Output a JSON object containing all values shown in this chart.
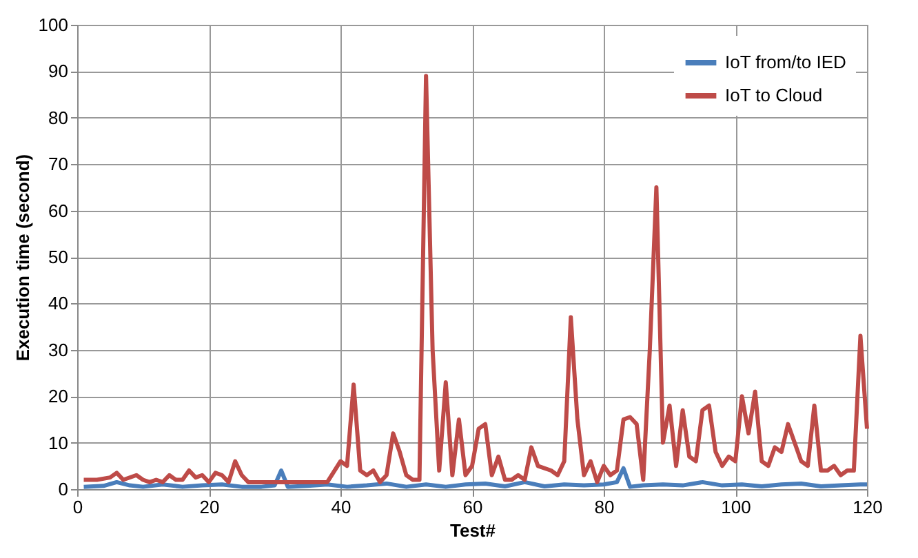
{
  "chart_data": {
    "type": "line",
    "xlabel": "Test#",
    "ylabel": "Execution time (second)",
    "xlim": [
      0,
      120
    ],
    "xticks": [
      0,
      20,
      40,
      60,
      80,
      100,
      120
    ],
    "ylim": [
      0,
      100
    ],
    "yticks": [
      0,
      10,
      20,
      30,
      40,
      50,
      60,
      70,
      80,
      90,
      100
    ],
    "grid": true,
    "legend": "top right",
    "marker": "none",
    "line_style": "solid",
    "series": [
      {
        "name": "IoT from/to IED",
        "color": "#4a7ebb",
        "x": [
          1,
          4,
          6,
          8,
          10,
          13,
          16,
          19,
          22,
          25,
          28,
          30,
          31,
          32,
          35,
          38,
          41,
          44,
          47,
          50,
          53,
          56,
          59,
          62,
          65,
          68,
          71,
          74,
          77,
          80,
          82,
          83,
          84,
          86,
          89,
          92,
          95,
          98,
          101,
          104,
          107,
          110,
          113,
          116,
          119,
          120
        ],
        "values": [
          0.5,
          0.7,
          1.5,
          0.8,
          0.5,
          1,
          0.5,
          0.8,
          1,
          0.5,
          0.5,
          0.8,
          4,
          0.5,
          0.7,
          1,
          0.5,
          0.8,
          1.2,
          0.5,
          1,
          0.5,
          1,
          1.2,
          0.6,
          1.5,
          0.6,
          1,
          0.8,
          1,
          1.5,
          4.5,
          0.5,
          0.8,
          1,
          0.8,
          1.5,
          0.8,
          1,
          0.6,
          1,
          1.2,
          0.6,
          0.8,
          1,
          1
        ]
      },
      {
        "name": "IoT to Cloud",
        "color": "#be4b48",
        "x": [
          1,
          3,
          5,
          6,
          7,
          9,
          10,
          11,
          12,
          13,
          14,
          15,
          16,
          17,
          18,
          19,
          20,
          21,
          22,
          23,
          24,
          25,
          26,
          30,
          35,
          38,
          40,
          41,
          42,
          43,
          44,
          45,
          46,
          47,
          48,
          49,
          50,
          51,
          52,
          53,
          54,
          55,
          56,
          57,
          58,
          59,
          60,
          61,
          62,
          63,
          64,
          65,
          66,
          67,
          68,
          69,
          70,
          72,
          73,
          74,
          75,
          76,
          77,
          78,
          79,
          80,
          81,
          82,
          83,
          84,
          85,
          86,
          87,
          88,
          89,
          90,
          91,
          92,
          93,
          94,
          95,
          96,
          97,
          98,
          99,
          100,
          101,
          102,
          103,
          104,
          105,
          106,
          107,
          108,
          109,
          110,
          111,
          112,
          113,
          114,
          115,
          116,
          117,
          118,
          119,
          120
        ],
        "values": [
          2,
          2,
          2.5,
          3.5,
          2,
          3,
          2,
          1.5,
          2,
          1.5,
          3,
          2,
          2,
          4,
          2.5,
          3,
          1.5,
          3.5,
          3,
          1.5,
          6,
          3,
          1.5,
          1.5,
          1.5,
          1.5,
          6,
          5,
          22.5,
          4,
          3,
          4,
          1.5,
          3,
          12,
          8,
          3,
          2,
          2,
          89,
          30,
          4,
          23,
          3,
          15,
          3,
          5,
          13,
          14,
          3,
          7,
          2,
          2,
          3,
          2,
          9,
          5,
          4,
          3,
          6,
          37,
          15,
          3,
          6,
          1.5,
          5,
          3,
          4,
          15,
          15.5,
          14,
          2,
          30,
          65,
          10,
          18,
          5,
          17,
          7,
          6,
          17,
          18,
          8,
          5,
          7,
          6,
          20,
          12,
          21,
          6,
          5,
          9,
          8,
          14,
          10,
          6,
          5,
          18,
          4,
          4,
          5,
          3,
          4,
          4,
          33,
          13
        ]
      }
    ]
  }
}
